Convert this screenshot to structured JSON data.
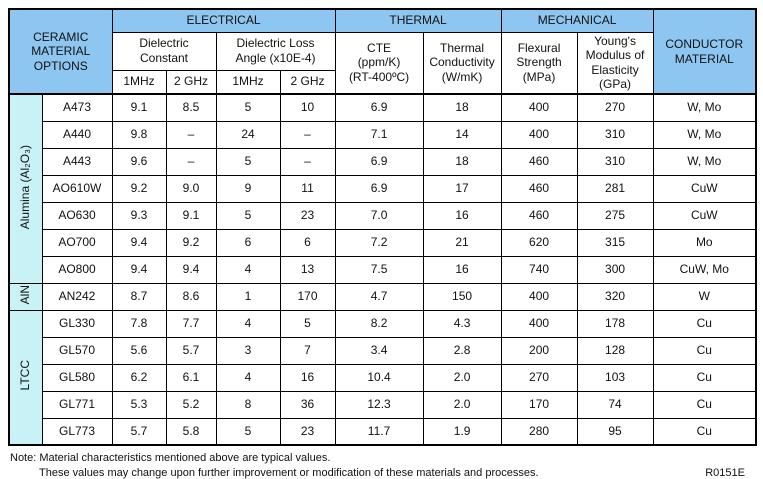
{
  "colors": {
    "header_blue": "#8dc6f1",
    "group_cyan": "#c9f2f6",
    "border": "#000000",
    "text": "#111111"
  },
  "table": {
    "header": {
      "corner": "CERAMIC\nMATERIAL\nOPTIONS",
      "electrical": "ELECTRICAL",
      "thermal": "THERMAL",
      "mechanical": "MECHANICAL",
      "conductor": "CONDUCTOR\nMATERIAL",
      "dielectric_constant": "Dielectric\nConstant",
      "dielectric_loss": "Dielectric Loss\nAngle (x10E-4)",
      "cte": "CTE\n(ppm/K)\n(RT-400ºC)",
      "thermal_conductivity": "Thermal\nConductivity\n(W/mK)",
      "flexural_strength": "Flexural\nStrength\n(MPa)",
      "youngs_modulus": "Young's\nModulus of\nElasticity\n(GPa)",
      "freq": [
        "1MHz",
        "2 GHz",
        "1MHz",
        "2 GHz"
      ]
    },
    "groups": [
      {
        "label": "Alumina (Al₂O₃)",
        "rows": [
          {
            "name": "A473",
            "values": [
              "9.1",
              "8.5",
              "5",
              "10",
              "6.9",
              "18",
              "400",
              "270"
            ],
            "conductor": "W, Mo"
          },
          {
            "name": "A440",
            "values": [
              "9.8",
              "–",
              "24",
              "–",
              "7.1",
              "14",
              "400",
              "310"
            ],
            "conductor": "W, Mo"
          },
          {
            "name": "A443",
            "values": [
              "9.6",
              "–",
              "5",
              "–",
              "6.9",
              "18",
              "460",
              "310"
            ],
            "conductor": "W, Mo"
          },
          {
            "name": "AO610W",
            "values": [
              "9.2",
              "9.0",
              "9",
              "11",
              "6.9",
              "17",
              "460",
              "281"
            ],
            "conductor": "CuW"
          },
          {
            "name": "AO630",
            "values": [
              "9.3",
              "9.1",
              "5",
              "23",
              "7.0",
              "16",
              "460",
              "275"
            ],
            "conductor": "CuW"
          },
          {
            "name": "AO700",
            "values": [
              "9.4",
              "9.2",
              "6",
              "6",
              "7.2",
              "21",
              "620",
              "315"
            ],
            "conductor": "Mo"
          },
          {
            "name": "AO800",
            "values": [
              "9.4",
              "9.4",
              "4",
              "13",
              "7.5",
              "16",
              "740",
              "300"
            ],
            "conductor": "CuW, Mo"
          }
        ]
      },
      {
        "label": "AlN",
        "rows": [
          {
            "name": "AN242",
            "values": [
              "8.7",
              "8.6",
              "1",
              "170",
              "4.7",
              "150",
              "400",
              "320"
            ],
            "conductor": "W"
          }
        ]
      },
      {
        "label": "LTCC",
        "rows": [
          {
            "name": "GL330",
            "values": [
              "7.8",
              "7.7",
              "4",
              "5",
              "8.2",
              "4.3",
              "400",
              "178"
            ],
            "conductor": "Cu"
          },
          {
            "name": "GL570",
            "values": [
              "5.6",
              "5.7",
              "3",
              "7",
              "3.4",
              "2.8",
              "200",
              "128"
            ],
            "conductor": "Cu"
          },
          {
            "name": "GL580",
            "values": [
              "6.2",
              "6.1",
              "4",
              "16",
              "10.4",
              "2.0",
              "270",
              "103"
            ],
            "conductor": "Cu"
          },
          {
            "name": "GL771",
            "values": [
              "5.3",
              "5.2",
              "8",
              "36",
              "12.3",
              "2.0",
              "170",
              "74"
            ],
            "conductor": "Cu"
          },
          {
            "name": "GL773",
            "values": [
              "5.7",
              "5.8",
              "5",
              "23",
              "11.7",
              "1.9",
              "280",
              "95"
            ],
            "conductor": "Cu"
          }
        ]
      }
    ]
  },
  "footer": {
    "note_line1": "Note: Material characteristics mentioned above are typical values.",
    "note_line2": "These values may change upon further improvement or modification of these materials and processes.",
    "doc_code": "R0151E"
  }
}
